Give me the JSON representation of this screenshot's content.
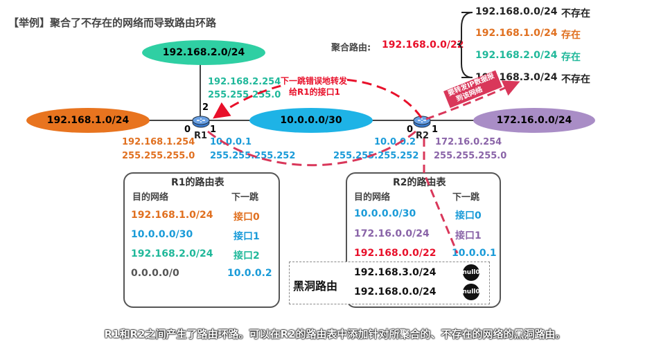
{
  "title": "【举例】聚合了不存在的网络而导致路由环路",
  "aggregate": {
    "label": "聚合路由:",
    "value": "192.168.0.0/22"
  },
  "aggregate_list": [
    {
      "net": "192.168.0.0/24",
      "status": "不存在"
    },
    {
      "net": "192.168.1.0/24",
      "status": "存在"
    },
    {
      "net": "192.168.2.0/24",
      "status": "存在"
    },
    {
      "net": "192.168.3.0/24",
      "status": "不存在"
    }
  ],
  "networks": {
    "n2": "192.168.2.0/24",
    "n1": "192.168.1.0/24",
    "n10": "10.0.0.0/30",
    "n172": "172.16.0.0/24"
  },
  "routers": {
    "r1": "R1",
    "r2": "R2"
  },
  "ports": {
    "r1_p0": "0",
    "r1_p1": "1",
    "r1_p2": "2",
    "r2_p0": "0",
    "r2_p1": "1"
  },
  "r1_if2": {
    "ip": "192.168.2.254",
    "mask": "255.255.255.0"
  },
  "r1_if0": {
    "ip": "192.168.1.254",
    "mask": "255.255.255.0"
  },
  "r1_if1": {
    "ip": "10.0.0.1",
    "mask": "255.255.255.252"
  },
  "r2_if0": {
    "ip": "10.0.0.2",
    "mask": "255.255.255.252"
  },
  "r2_if1": {
    "ip": "172.16.0.254",
    "mask": "255.255.255.0"
  },
  "annotations": {
    "misforward_line1": "下一跳错误地转发",
    "misforward_line2": "给R1的接口1",
    "forward_line1": "要转发IP数据报",
    "forward_line2": "到该网络"
  },
  "r1_table": {
    "title": "R1的路由表",
    "col_dest": "目的网络",
    "col_next": "下一跳",
    "rows": [
      {
        "dest": "192.168.1.0/24",
        "next": "接口0"
      },
      {
        "dest": "10.0.0.0/30",
        "next": "接口1"
      },
      {
        "dest": "192.168.2.0/24",
        "next": "接口2"
      },
      {
        "dest": "0.0.0.0/0",
        "next": "10.0.0.2"
      }
    ]
  },
  "r2_table": {
    "title": "R2的路由表",
    "col_dest": "目的网络",
    "col_next": "下一跳",
    "rows": [
      {
        "dest": "10.0.0.0/30",
        "next": "接口0"
      },
      {
        "dest": "172.16.0.0/24",
        "next": "接口1"
      },
      {
        "dest": "192.168.0.0/22",
        "next": "10.0.0.1"
      }
    ]
  },
  "blackhole": {
    "label": "黑洞路由",
    "rows": [
      {
        "dest": "192.168.3.0/24",
        "next": "null0"
      },
      {
        "dest": "192.168.0.0/24",
        "next": "null0"
      }
    ]
  },
  "caption": "R1和R2之间产生了路由环路。可以在R2的路由表中添加针对所聚合的、不存在的网络的黑洞路由。",
  "colors": {
    "orange": "#e07020",
    "teal": "#20b89a",
    "blue": "#1a9bd8",
    "purple": "#8a64a8",
    "red": "#e8102a",
    "dashed": "#d9375a",
    "gray": "#555555"
  }
}
